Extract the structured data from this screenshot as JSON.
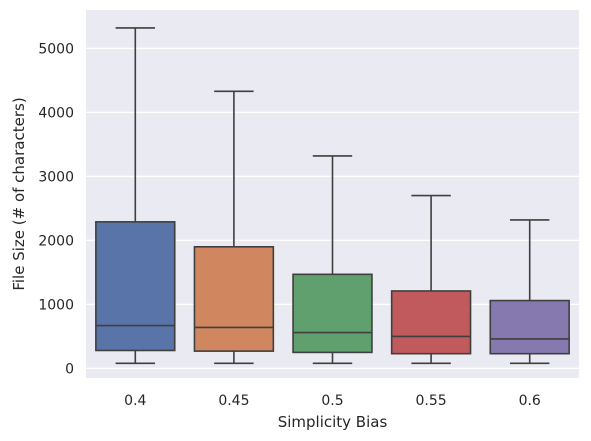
{
  "chart_data": {
    "type": "boxplot",
    "title": "",
    "xlabel": "Simplicity Bias",
    "ylabel": "File Size (# of characters)",
    "categories": [
      "0.4",
      "0.45",
      "0.5",
      "0.55",
      "0.6"
    ],
    "ylim": [
      -150,
      5600
    ],
    "yticks": [
      0,
      1000,
      2000,
      3000,
      4000,
      5000
    ],
    "ytick_labels": [
      "0",
      "1000",
      "2000",
      "3000",
      "4000",
      "5000"
    ],
    "grid": true,
    "background": "#eaeaf2",
    "boxes": [
      {
        "category": "0.4",
        "whisker_low": 80,
        "q1": 280,
        "median": 670,
        "q3": 2290,
        "whisker_high": 5320,
        "color": "#5874a8"
      },
      {
        "category": "0.45",
        "whisker_low": 80,
        "q1": 270,
        "median": 640,
        "q3": 1900,
        "whisker_high": 4330,
        "color": "#d0875f"
      },
      {
        "category": "0.5",
        "whisker_low": 80,
        "q1": 250,
        "median": 560,
        "q3": 1470,
        "whisker_high": 3320,
        "color": "#5fa06e"
      },
      {
        "category": "0.55",
        "whisker_low": 80,
        "q1": 230,
        "median": 500,
        "q3": 1210,
        "whisker_high": 2700,
        "color": "#c15a5c"
      },
      {
        "category": "0.6",
        "whisker_low": 80,
        "q1": 230,
        "median": 460,
        "q3": 1060,
        "whisker_high": 2320,
        "color": "#8679b0"
      }
    ]
  }
}
